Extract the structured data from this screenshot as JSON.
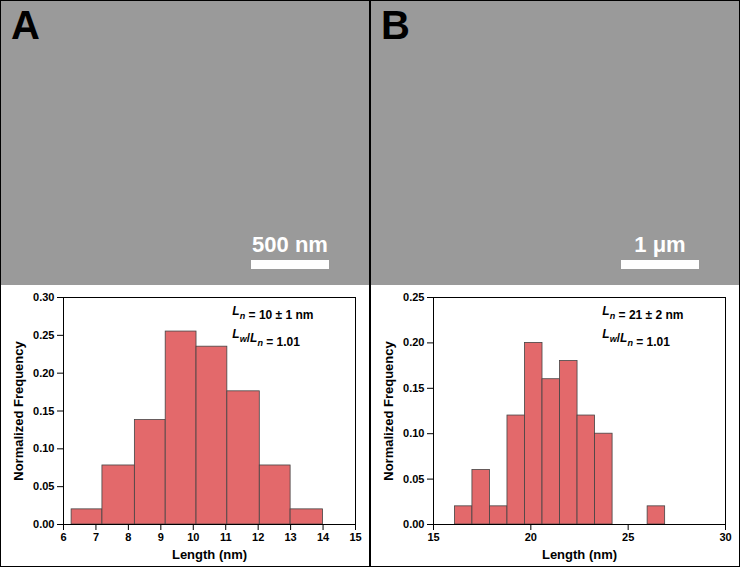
{
  "chart_data": [
    {
      "type": "histogram",
      "panel_label": "A",
      "scale_bar": "500 nm",
      "xlabel": "Length (nm)",
      "ylabel": "Normalized Frequency",
      "annotations": [
        "Ln = 10 ± 1 nm",
        "Lw/Ln = 1.01"
      ],
      "bins": [
        6.25,
        7.2,
        8.2,
        9.15,
        10.1,
        11.05,
        12.05,
        13.0,
        14.0
      ],
      "counts": [
        0.02,
        0.078,
        0.138,
        0.255,
        0.235,
        0.176,
        0.078,
        0.02
      ],
      "color": "#e3696b",
      "xlim": [
        6,
        15
      ],
      "xticks": [
        6,
        7,
        8,
        9,
        10,
        11,
        12,
        13,
        14,
        15
      ],
      "ylim": [
        0,
        0.3
      ],
      "yticks": [
        {
          "value": 0,
          "label": "0.00"
        },
        {
          "value": 0.05,
          "label": "0.05"
        },
        {
          "value": 0.1,
          "label": "0.10"
        },
        {
          "value": 0.15,
          "label": "0.15"
        },
        {
          "value": 0.2,
          "label": "0.20"
        },
        {
          "value": 0.25,
          "label": "0.25"
        },
        {
          "value": 0.3,
          "label": "0.30"
        }
      ]
    },
    {
      "type": "histogram",
      "panel_label": "B",
      "scale_bar": "1 μm",
      "xlabel": "Length (nm)",
      "ylabel": "Normalized Frequency",
      "annotations": [
        "Ln = 21 ± 2 nm",
        "Lw/Ln = 1.01"
      ],
      "bins": [
        16.1,
        17.0,
        17.9,
        18.8,
        19.7,
        20.6,
        21.5,
        22.4,
        23.3,
        24.2,
        25.1,
        26.0,
        26.9
      ],
      "counts": [
        0.02,
        0.06,
        0.02,
        0.12,
        0.2,
        0.16,
        0.18,
        0.12,
        0.1,
        0,
        0,
        0.02
      ],
      "color": "#e3696b",
      "xlim": [
        15,
        30
      ],
      "xticks": [
        15,
        20,
        25,
        30
      ],
      "ylim": [
        0,
        0.25
      ],
      "yticks": [
        {
          "value": 0,
          "label": "0.00"
        },
        {
          "value": 0.05,
          "label": "0.05"
        },
        {
          "value": 0.1,
          "label": "0.10"
        },
        {
          "value": 0.15,
          "label": "0.15"
        },
        {
          "value": 0.2,
          "label": "0.20"
        },
        {
          "value": 0.25,
          "label": "0.25"
        }
      ]
    }
  ]
}
